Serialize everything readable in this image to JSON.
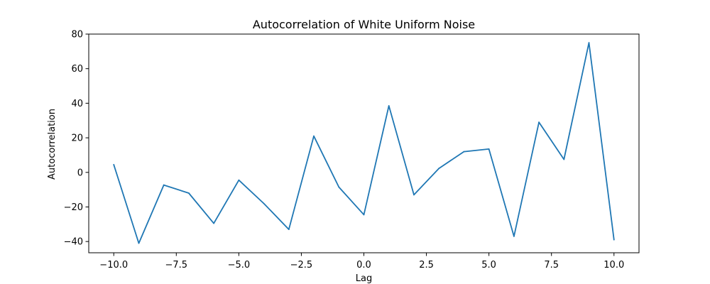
{
  "chart_data": {
    "type": "line",
    "title": "Autocorrelation of White Uniform Noise",
    "xlabel": "Lag",
    "ylabel": "Autocorrelation",
    "xlim": [
      -11.0,
      11.0
    ],
    "ylim": [
      -46.5,
      80.0
    ],
    "x_ticks": [
      -10.0,
      -7.5,
      -5.0,
      -2.5,
      0.0,
      2.5,
      5.0,
      7.5,
      10.0
    ],
    "x_tick_labels": [
      "−10.0",
      "−7.5",
      "−5.0",
      "−2.5",
      "0.0",
      "2.5",
      "5.0",
      "7.5",
      "10.0"
    ],
    "y_ticks": [
      -40,
      -20,
      0,
      20,
      40,
      60,
      80
    ],
    "y_tick_labels": [
      "−40",
      "−20",
      "0",
      "20",
      "40",
      "60",
      "80"
    ],
    "grid": false,
    "legend": "none",
    "series": [
      {
        "color": "#1f77b4",
        "x": [
          -10,
          -9,
          -8,
          -7,
          -6,
          -5,
          -4,
          -3,
          -2,
          -1,
          0,
          1,
          2,
          3,
          4,
          5,
          6,
          7,
          8,
          9,
          10
        ],
        "y": [
          4.5,
          -41.0,
          -7.3,
          -12.0,
          -29.5,
          -4.5,
          -18.0,
          -33.0,
          21.0,
          -8.5,
          -24.5,
          38.5,
          -13.0,
          2.3,
          12.0,
          13.5,
          -37.0,
          29.0,
          7.5,
          75.0,
          -39.0
        ]
      }
    ]
  }
}
